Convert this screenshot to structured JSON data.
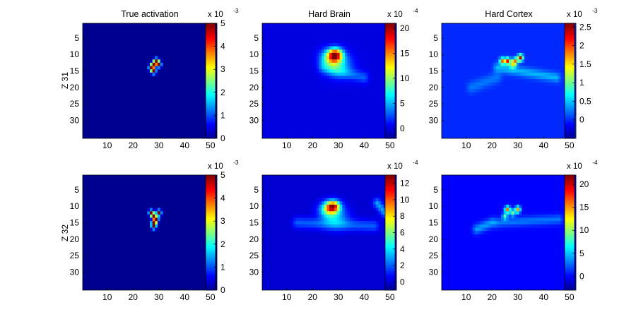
{
  "colormap": [
    "#00008f",
    "#0000ff",
    "#00ffff",
    "#ffff00",
    "#ff0000",
    "#800000"
  ],
  "background_value_color": "#1a3ad6",
  "row_labels": [
    "Z 31",
    "Z 32"
  ],
  "x_ticks": [
    "10",
    "20",
    "30",
    "40",
    "50"
  ],
  "y_ticks": [
    "5",
    "10",
    "15",
    "20",
    "25",
    "30"
  ],
  "grid": {
    "rows": 35,
    "cols": 52
  },
  "chart_data": [
    {
      "type": "heatmap",
      "row": 0,
      "col": 0,
      "title": "True activation",
      "ylabel": "Z 31",
      "xlim": [
        0,
        52
      ],
      "ylim": [
        35,
        0
      ],
      "colorbar": {
        "exponent": "x 10",
        "exp_power": "-3",
        "clim": [
          0,
          5
        ],
        "ticks": [
          "0",
          "1",
          "2",
          "3",
          "4",
          "5"
        ],
        "tick_values": [
          0,
          1,
          2,
          3,
          4,
          5
        ]
      },
      "base": 0,
      "hotspots": [
        [
          14,
          27,
          0.6,
          0.6,
          5
        ],
        [
          13,
          28,
          0.6,
          0.6,
          5
        ],
        [
          12,
          29,
          0.6,
          0.6,
          5
        ],
        [
          13,
          30,
          0.6,
          0.6,
          5
        ],
        [
          15,
          28,
          0.6,
          0.6,
          5
        ]
      ],
      "ridges": []
    },
    {
      "type": "heatmap",
      "row": 0,
      "col": 1,
      "title": "Hard Brain",
      "xlim": [
        0,
        52
      ],
      "ylim": [
        35,
        0
      ],
      "colorbar": {
        "exponent": "x 10",
        "exp_power": "-4",
        "clim": [
          -2,
          21
        ],
        "ticks": [
          "0",
          "5",
          "10",
          "15",
          "20"
        ],
        "tick_values": [
          0,
          5,
          10,
          15,
          20
        ]
      },
      "base": 0,
      "hotspots": [
        [
          10,
          29,
          1.3,
          1.8,
          14
        ],
        [
          11,
          27,
          1.8,
          2.6,
          9
        ],
        [
          13,
          30,
          2.5,
          3.5,
          6
        ]
      ],
      "ridges": [
        [
          14,
          24,
          17,
          40,
          1.2,
          3
        ]
      ]
    },
    {
      "type": "heatmap",
      "row": 0,
      "col": 2,
      "title": "Hard Cortex",
      "xlim": [
        0,
        52
      ],
      "ylim": [
        35,
        0
      ],
      "colorbar": {
        "exponent": "x 10",
        "exp_power": "-3",
        "clim": [
          -0.5,
          2.6
        ],
        "ticks": [
          "0",
          "0.5",
          "1",
          "1.5",
          "2",
          "2.5"
        ],
        "tick_values": [
          0,
          0.5,
          1,
          1.5,
          2,
          2.5
        ]
      },
      "base": 0,
      "hotspots": [
        [
          12,
          24,
          0.7,
          0.7,
          1.8
        ],
        [
          12,
          26,
          0.7,
          0.7,
          2.1
        ],
        [
          11,
          31,
          0.7,
          0.7,
          2.4
        ],
        [
          12,
          29,
          0.7,
          0.7,
          1.6
        ],
        [
          13,
          28,
          0.8,
          0.8,
          1.2
        ]
      ],
      "ridges": [
        [
          14,
          22,
          17,
          45,
          1.0,
          0.45
        ],
        [
          20,
          12,
          17,
          22,
          1.2,
          0.25
        ]
      ]
    },
    {
      "type": "heatmap",
      "row": 1,
      "col": 0,
      "title": "",
      "ylabel": "Z 32",
      "xlim": [
        0,
        52
      ],
      "ylim": [
        35,
        0
      ],
      "colorbar": {
        "exponent": "x 10",
        "exp_power": "-3",
        "clim": [
          0,
          5
        ],
        "ticks": [
          "0",
          "1",
          "2",
          "3",
          "4",
          "5"
        ],
        "tick_values": [
          0,
          1,
          2,
          3,
          4,
          5
        ]
      },
      "base": 0,
      "hotspots": [
        [
          12,
          27,
          0.6,
          0.6,
          5
        ],
        [
          13,
          28,
          0.6,
          0.6,
          5
        ],
        [
          12,
          30,
          0.6,
          0.6,
          5
        ],
        [
          14,
          29,
          0.6,
          0.6,
          5
        ],
        [
          15,
          28,
          0.6,
          0.6,
          5
        ],
        [
          16,
          28,
          0.6,
          0.6,
          5
        ]
      ],
      "ridges": []
    },
    {
      "type": "heatmap",
      "row": 1,
      "col": 1,
      "title": "",
      "xlim": [
        0,
        52
      ],
      "ylim": [
        35,
        0
      ],
      "colorbar": {
        "exponent": "x 10",
        "exp_power": "-4",
        "clim": [
          -1,
          13
        ],
        "ticks": [
          "0",
          "2",
          "4",
          "6",
          "8",
          "10",
          "12"
        ],
        "tick_values": [
          0,
          2,
          4,
          6,
          8,
          10,
          12
        ]
      },
      "base": 0,
      "hotspots": [
        [
          10,
          28,
          1.2,
          1.8,
          9
        ],
        [
          11,
          26,
          1.6,
          2.4,
          5
        ],
        [
          13,
          29,
          2.4,
          3.4,
          3
        ]
      ],
      "ridges": [
        [
          15,
          14,
          16,
          44,
          1.2,
          2
        ],
        [
          9,
          45,
          12,
          48,
          1.0,
          3
        ]
      ]
    },
    {
      "type": "heatmap",
      "row": 1,
      "col": 2,
      "title": "",
      "xlim": [
        0,
        52
      ],
      "ylim": [
        35,
        0
      ],
      "colorbar": {
        "exponent": "x 10",
        "exp_power": "-4",
        "clim": [
          -3,
          22
        ],
        "ticks": [
          "0",
          "5",
          "10",
          "15",
          "20"
        ],
        "tick_values": [
          0,
          5,
          10,
          15,
          20
        ]
      },
      "base": 0,
      "hotspots": [
        [
          11,
          26,
          0.7,
          0.7,
          16
        ],
        [
          11,
          30,
          0.7,
          0.7,
          15
        ],
        [
          12,
          28,
          0.7,
          0.7,
          9
        ],
        [
          13,
          25,
          0.7,
          0.7,
          8
        ]
      ],
      "ridges": [
        [
          15,
          22,
          14,
          46,
          1.0,
          3
        ],
        [
          17,
          14,
          15,
          20,
          1.0,
          4
        ]
      ]
    }
  ]
}
